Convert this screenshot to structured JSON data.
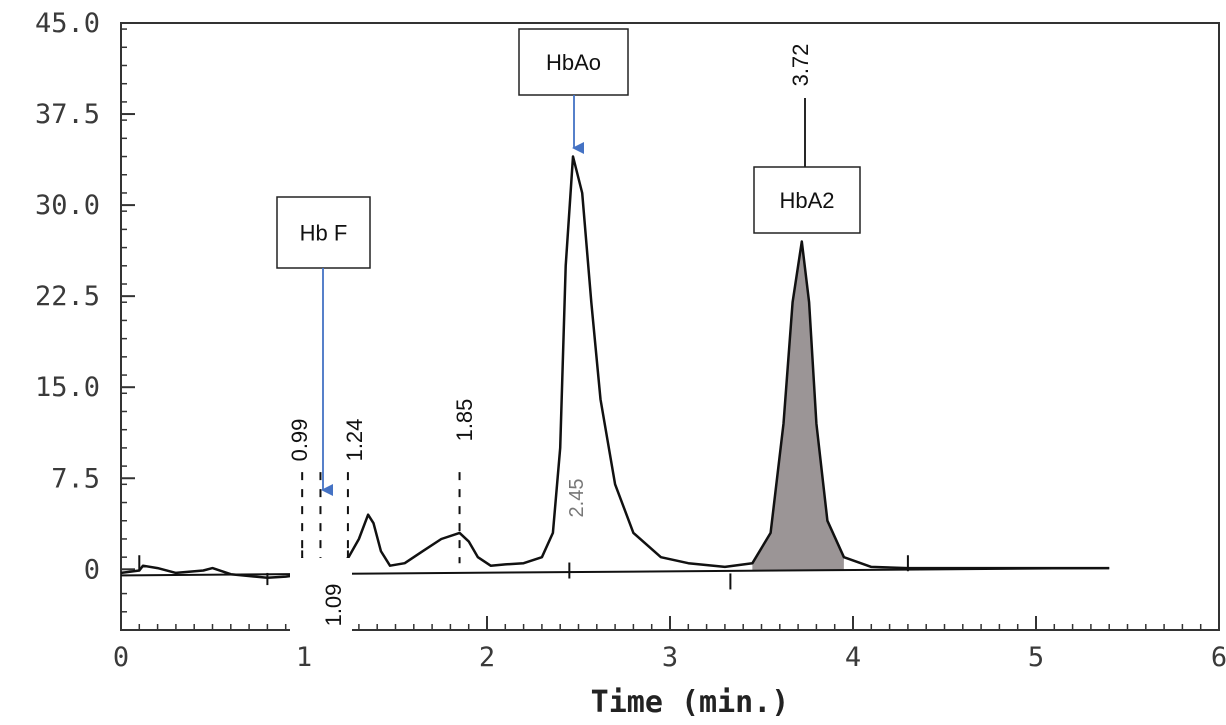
{
  "chart_data": {
    "type": "line",
    "xlabel": "Time (min.)",
    "ylabel": "",
    "xlim": [
      0,
      6
    ],
    "ylim": [
      -5,
      45
    ],
    "x_ticks": [
      "0",
      "1",
      "2",
      "3",
      "4",
      "5",
      "6"
    ],
    "y_ticks": [
      "0",
      "7.5",
      "15.0",
      "22.5",
      "30.0",
      "37.5",
      "45.0"
    ],
    "grid": false,
    "series": [
      {
        "values_x": [
          0.0,
          0.1,
          0.12,
          0.2,
          0.3,
          0.45,
          0.5,
          0.6,
          0.8,
          0.9,
          1.0,
          1.05,
          1.09,
          1.14,
          1.2,
          1.24,
          1.3,
          1.35,
          1.38,
          1.42,
          1.47,
          1.55,
          1.65,
          1.75,
          1.85,
          1.9,
          1.95,
          2.02,
          2.1,
          2.2,
          2.3,
          2.36,
          2.4,
          2.43,
          2.47,
          2.52,
          2.57,
          2.62,
          2.7,
          2.8,
          2.95,
          3.1,
          3.3,
          3.45,
          3.55,
          3.62,
          3.67,
          3.72,
          3.76,
          3.8,
          3.86,
          3.95,
          4.1,
          4.3,
          5.4
        ],
        "values_y": [
          -0.3,
          -0.1,
          0.3,
          0.1,
          -0.3,
          -0.1,
          0.1,
          -0.4,
          -0.7,
          -0.6,
          -0.4,
          0.1,
          0.4,
          0.1,
          0.6,
          0.9,
          2.5,
          4.5,
          3.8,
          1.5,
          0.3,
          0.5,
          1.5,
          2.5,
          3.0,
          2.3,
          1.0,
          0.3,
          0.4,
          0.5,
          1.0,
          3.0,
          10.0,
          25.0,
          34.0,
          31.0,
          22.0,
          14.0,
          7.0,
          3.0,
          1.0,
          0.5,
          0.2,
          0.5,
          3.0,
          12.0,
          22.0,
          27.0,
          22.0,
          12.0,
          4.0,
          1.0,
          0.2,
          0.1,
          0.1
        ]
      }
    ],
    "baseline": {
      "x": [
        0.0,
        5.4
      ],
      "y": [
        -0.5,
        0.1
      ]
    },
    "shaded_peak": {
      "x_from": 3.45,
      "x_to": 3.95
    },
    "retention_labels": [
      {
        "text": "0.99",
        "x": 0.99,
        "style": "bold"
      },
      {
        "text": "1.24",
        "x": 1.24,
        "style": "bold"
      },
      {
        "text": "1.85",
        "x": 1.85,
        "style": "bold"
      },
      {
        "text": "2.45",
        "x": 2.45,
        "style": "faint"
      },
      {
        "text": "3.72",
        "x": 3.72,
        "style": "bold"
      },
      {
        "text": "1.09",
        "x": 1.09,
        "style": "bold"
      }
    ],
    "annotations": [
      {
        "text": "Hb F",
        "target_x": 1.09
      },
      {
        "text": "HbAo",
        "target_x": 2.45
      },
      {
        "text": "HbA2",
        "target_x": 3.72
      }
    ],
    "colors": {
      "line": "#111111",
      "arrow": "#4472c4",
      "shade": "#8a8384",
      "axis": "#333333"
    }
  }
}
